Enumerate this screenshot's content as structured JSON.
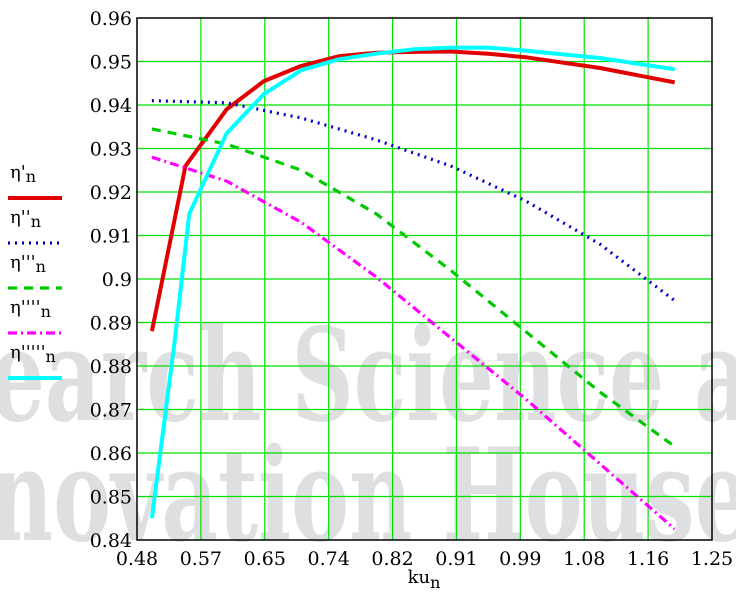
{
  "watermark": {
    "line1": "earch Science a",
    "line2": "novation House",
    "color": "#6b6f78"
  },
  "chart_data": {
    "type": "line",
    "xlabel": "ku",
    "xlabel_sub": "n",
    "ylabel": "",
    "xlim": [
      0.48,
      1.25
    ],
    "ylim": [
      0.84,
      0.96
    ],
    "x_ticks": [
      "0.48",
      "0.57",
      "0.65",
      "0.74",
      "0.82",
      "0.91",
      "0.99",
      "1.08",
      "1.16",
      "1.25"
    ],
    "y_ticks": [
      "0.84",
      "0.85",
      "0.86",
      "0.87",
      "0.88",
      "0.89",
      "0.9",
      "0.91",
      "0.92",
      "0.93",
      "0.94",
      "0.95",
      "0.96"
    ],
    "grid": true,
    "grid_color": "#00e000",
    "legend_position": "left",
    "series": [
      {
        "name": "η'",
        "name_sub": "n",
        "color": "#e00000",
        "style": "solid",
        "x": [
          0.5,
          0.545,
          0.6,
          0.65,
          0.7,
          0.75,
          0.8,
          0.85,
          0.9,
          0.95,
          1.0,
          1.1,
          1.2
        ],
        "y": [
          0.888,
          0.926,
          0.939,
          0.9455,
          0.949,
          0.9512,
          0.952,
          0.9522,
          0.9523,
          0.9518,
          0.951,
          0.9485,
          0.9452
        ]
      },
      {
        "name": "η''",
        "name_sub": "n",
        "color": "#0000c8",
        "style": "dotted",
        "x": [
          0.5,
          0.6,
          0.7,
          0.8,
          0.9,
          1.0,
          1.1,
          1.2
        ],
        "y": [
          0.941,
          0.9405,
          0.937,
          0.932,
          0.926,
          0.918,
          0.908,
          0.895
        ]
      },
      {
        "name": "η'''",
        "name_sub": "n",
        "color": "#00c800",
        "style": "dashed",
        "x": [
          0.5,
          0.6,
          0.7,
          0.8,
          0.9,
          1.0,
          1.1,
          1.2
        ],
        "y": [
          0.9345,
          0.931,
          0.925,
          0.915,
          0.902,
          0.888,
          0.874,
          0.8615
        ]
      },
      {
        "name": "η''''",
        "name_sub": "n",
        "color": "#ff00ff",
        "style": "dashdot",
        "x": [
          0.5,
          0.6,
          0.7,
          0.8,
          0.9,
          1.0,
          1.1,
          1.2
        ],
        "y": [
          0.928,
          0.9225,
          0.913,
          0.9005,
          0.8865,
          0.8725,
          0.8575,
          0.8425
        ]
      },
      {
        "name": "η'''''",
        "name_sub": "n",
        "color": "#00ffff",
        "style": "solid",
        "x": [
          0.5,
          0.53,
          0.55,
          0.6,
          0.65,
          0.7,
          0.75,
          0.8,
          0.85,
          0.9,
          0.95,
          1.0,
          1.1,
          1.2
        ],
        "y": [
          0.845,
          0.885,
          0.915,
          0.9335,
          0.9425,
          0.948,
          0.9505,
          0.9518,
          0.9528,
          0.9532,
          0.9532,
          0.9525,
          0.9508,
          0.9482
        ]
      }
    ]
  }
}
